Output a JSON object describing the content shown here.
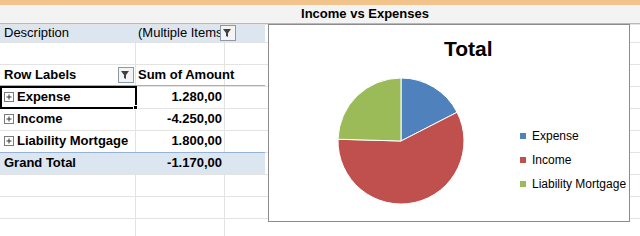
{
  "header": {
    "title": "Income vs Expenses"
  },
  "filter": {
    "label": "Description",
    "value": "(Multiple Items)"
  },
  "pivot": {
    "columns": [
      "Row Labels",
      "Sum of Amount"
    ],
    "rows": [
      [
        "Expense",
        "1.280,00"
      ],
      [
        "Income",
        "-4.250,00"
      ],
      [
        "Liability Mortgage",
        "1.800,00"
      ]
    ],
    "total": [
      "Grand Total",
      "-1.170,00"
    ]
  },
  "chart_data": {
    "type": "pie",
    "title": "Total",
    "categories": [
      "Expense",
      "Income",
      "Liability Mortgage"
    ],
    "values": [
      1280,
      4250,
      1800
    ],
    "colors": [
      "#4f81bd",
      "#c0504d",
      "#9bbb59"
    ],
    "legend": "right"
  }
}
